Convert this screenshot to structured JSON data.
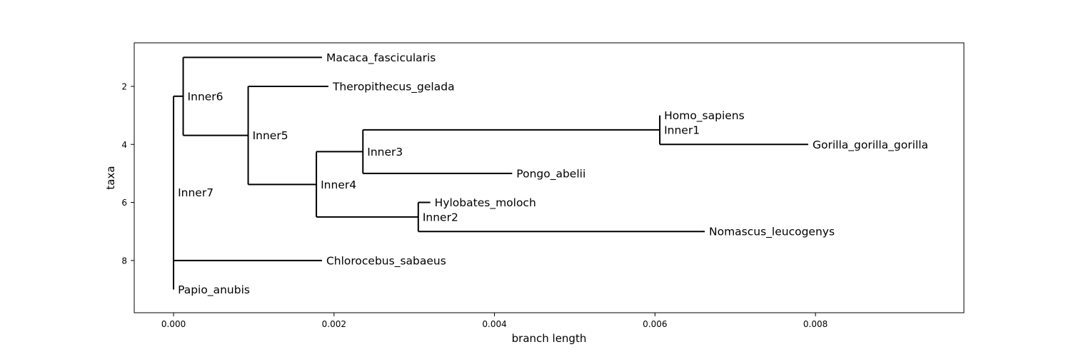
{
  "chart_data": {
    "type": "phylogenetic-tree",
    "xlabel": "branch length",
    "ylabel": "taxa",
    "xlim": [
      -0.00049,
      0.00985
    ],
    "ylim": [
      9.8,
      0.5
    ],
    "x_ticks": [
      0.0,
      0.002,
      0.004,
      0.006,
      0.008
    ],
    "x_tick_labels": [
      "0.000",
      "0.002",
      "0.004",
      "0.006",
      "0.008"
    ],
    "y_ticks": [
      2,
      4,
      6,
      8
    ],
    "y_tick_labels": [
      "2",
      "4",
      "6",
      "8"
    ],
    "grid": false,
    "root": "Inner7",
    "nodes": [
      {
        "name": "Inner7",
        "label": "Inner7",
        "parent": null,
        "x": 0.0,
        "y": 5.65,
        "leaf": false
      },
      {
        "name": "Inner6",
        "label": "Inner6",
        "parent": "Inner7",
        "x": 0.00012,
        "y": 2.34,
        "leaf": false
      },
      {
        "name": "Macaca_fascicularis",
        "label": "Macaca_fascicularis",
        "parent": "Inner6",
        "x": 0.00185,
        "y": 1,
        "leaf": true
      },
      {
        "name": "Inner5",
        "label": "Inner5",
        "parent": "Inner6",
        "x": 0.00093,
        "y": 3.69,
        "leaf": false
      },
      {
        "name": "Theropithecus_gelada",
        "label": "Theropithecus_gelada",
        "parent": "Inner5",
        "x": 0.00193,
        "y": 2,
        "leaf": true
      },
      {
        "name": "Inner4",
        "label": "Inner4",
        "parent": "Inner5",
        "x": 0.00178,
        "y": 5.38,
        "leaf": false
      },
      {
        "name": "Inner3",
        "label": "Inner3",
        "parent": "Inner4",
        "x": 0.00236,
        "y": 4.25,
        "leaf": false
      },
      {
        "name": "Inner1",
        "label": "Inner1",
        "parent": "Inner3",
        "x": 0.00606,
        "y": 3.5,
        "leaf": false
      },
      {
        "name": "Homo_sapiens",
        "label": "Homo_sapiens",
        "parent": "Inner1",
        "x": 0.00606,
        "y": 3,
        "leaf": true
      },
      {
        "name": "Gorilla_gorilla_gorilla",
        "label": "Gorilla_gorilla_gorilla",
        "parent": "Inner1",
        "x": 0.00791,
        "y": 4,
        "leaf": true
      },
      {
        "name": "Pongo_abelii",
        "label": "Pongo_abelii",
        "parent": "Inner3",
        "x": 0.00422,
        "y": 5,
        "leaf": true
      },
      {
        "name": "Inner2",
        "label": "Inner2",
        "parent": "Inner4",
        "x": 0.00305,
        "y": 6.5,
        "leaf": false
      },
      {
        "name": "Hylobates_moloch",
        "label": "Hylobates_moloch",
        "parent": "Inner2",
        "x": 0.0032,
        "y": 6,
        "leaf": true
      },
      {
        "name": "Nomascus_leucogenys",
        "label": "Nomascus_leucogenys",
        "parent": "Inner2",
        "x": 0.00662,
        "y": 7,
        "leaf": true
      },
      {
        "name": "Chlorocebus_sabaeus",
        "label": "Chlorocebus_sabaeus",
        "parent": "Inner7",
        "x": 0.00185,
        "y": 8,
        "leaf": true
      },
      {
        "name": "Papio_anubis",
        "label": "Papio_anubis",
        "parent": "Inner7",
        "x": 0.0,
        "y": 9,
        "leaf": true
      }
    ]
  }
}
